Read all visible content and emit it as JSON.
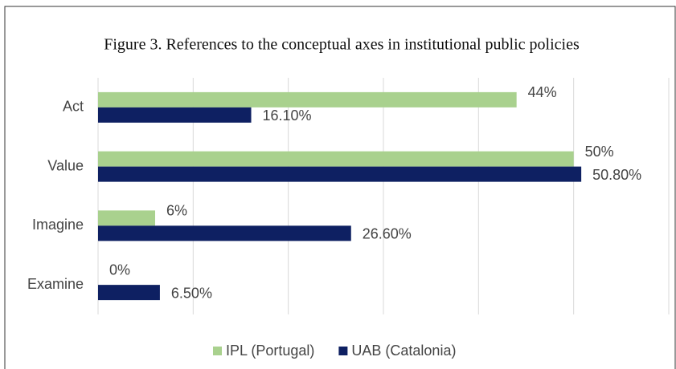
{
  "chart_data": {
    "type": "hbar",
    "title": "Figure 3. References to the conceptual axes in institutional public policies",
    "categories": [
      "Act",
      "Value",
      "Imagine",
      "Examine"
    ],
    "series": [
      {
        "name": "IPL (Portugal)",
        "color": "#a9d18e",
        "values": [
          44,
          50,
          6,
          0
        ],
        "value_labels": [
          "44%",
          "50%",
          "6%",
          "0%"
        ]
      },
      {
        "name": "UAB (Catalonia)",
        "color": "#0e2062",
        "values": [
          16.1,
          50.8,
          26.6,
          6.5
        ],
        "value_labels": [
          "16.10%",
          "50.80%",
          "26.60%",
          "6.50%"
        ]
      }
    ],
    "xlim": [
      0,
      60
    ],
    "xticks": [
      0,
      10,
      20,
      30,
      40,
      50,
      60
    ],
    "grid": true,
    "legend": "bottom"
  }
}
